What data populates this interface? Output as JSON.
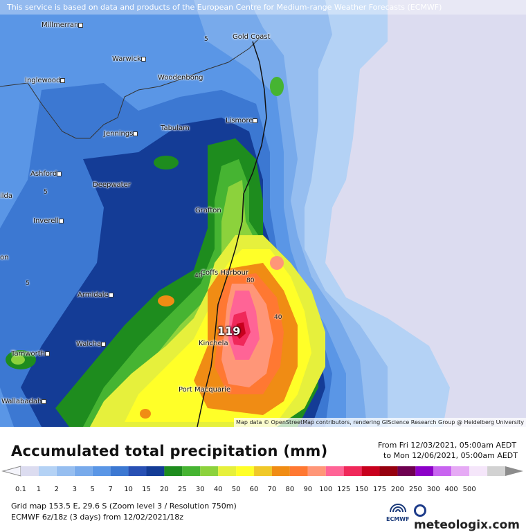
{
  "banner": "This service is based on data and products of the European Centre for Medium-range Weather Forecasts (ECMWF)",
  "attribution": "Map data © OpenStreetMap contributors, rendering GIScience Research Group @ Heidelberg University",
  "title": "Accumulated total precipitation (mm)",
  "period": {
    "from": "From Fri 12/03/2021, 05:00am AEDT",
    "to": "to Mon 12/06/2021, 05:00am AEDT"
  },
  "legend": {
    "ticks": [
      "0.1",
      "1",
      "2",
      "3",
      "5",
      "7",
      "10",
      "15",
      "20",
      "25",
      "30",
      "40",
      "50",
      "60",
      "70",
      "80",
      "90",
      "100",
      "125",
      "150",
      "175",
      "200",
      "250",
      "300",
      "400",
      "500"
    ],
    "colors": [
      "#dcdcf0",
      "#b4d2f5",
      "#96bef0",
      "#78aaeb",
      "#5a96e6",
      "#3c78d2",
      "#2850b4",
      "#143c96",
      "#1e8c1e",
      "#46b432",
      "#8cd23c",
      "#e6f03c",
      "#ffff28",
      "#f0c828",
      "#f08c14",
      "#ff7832",
      "#ff9678",
      "#ff6496",
      "#f0285a",
      "#c8001e",
      "#96000f",
      "#6e0050",
      "#8c00c8",
      "#c864f0",
      "#e6aaf5",
      "#f5e6fa",
      "#d2d2d2"
    ]
  },
  "grid_info": "Grid map 153.5 E, 29.6 S (Zoom level 3 / Resolution 750m)",
  "model_info": "ECMWF 6z/18z (3 days) from  12/02/2021/18z",
  "brand": {
    "ecmwf": "ECMWF",
    "meteologix": "meteologix.com"
  },
  "cities": [
    {
      "name": "Millmerran",
      "dot": "right"
    },
    {
      "name": "Gold Coast",
      "dot": "top"
    },
    {
      "name": "Warwick",
      "dot": "right"
    },
    {
      "name": "Inglewood",
      "dot": "right"
    },
    {
      "name": "Woodenbong",
      "dot": "top"
    },
    {
      "name": "Lismore",
      "dot": "right"
    },
    {
      "name": "Tabulam",
      "dot": "top"
    },
    {
      "name": "Jennings",
      "dot": "right"
    },
    {
      "name": "Ashford",
      "dot": "right"
    },
    {
      "name": "Deepwater",
      "dot": "top"
    },
    {
      "name": "Grafton",
      "dot": "top"
    },
    {
      "name": "Inverell",
      "dot": "right"
    },
    {
      "name": "Coffs Harbour",
      "dot": "right"
    },
    {
      "name": "Armidale",
      "dot": "right"
    },
    {
      "name": "Kinchela",
      "dot": "top"
    },
    {
      "name": "Walcha",
      "dot": "right"
    },
    {
      "name": "Tamworth",
      "dot": "right"
    },
    {
      "name": "Port Macquarie",
      "dot": "bottom"
    },
    {
      "name": "Wallabadah",
      "dot": "right"
    }
  ],
  "edge_labels": [
    "ilda",
    "on"
  ],
  "contour_labels": [
    "5",
    "5",
    "5",
    "40",
    "80",
    "40"
  ],
  "max_value": "119"
}
